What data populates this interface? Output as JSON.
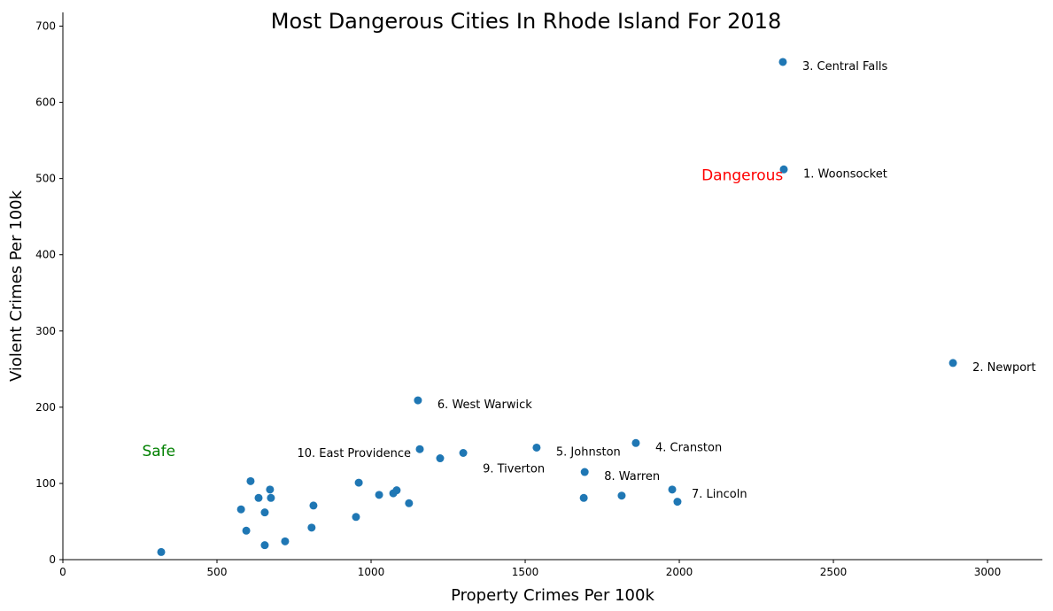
{
  "chart_data": {
    "type": "scatter",
    "title": "Most Dangerous Cities In Rhode Island For 2018",
    "xlabel": "Property Crimes Per 100k",
    "ylabel": "Violent Crimes Per 100k",
    "xlim": [
      0,
      3178
    ],
    "ylim": [
      0,
      718
    ],
    "xticks": [
      0,
      500,
      1000,
      1500,
      2000,
      2500,
      3000
    ],
    "yticks": [
      0,
      100,
      200,
      300,
      400,
      500,
      600,
      700
    ],
    "grid": false,
    "point_color": "#1f77b4",
    "points": [
      {
        "x": 2336,
        "y": 653,
        "label": "3. Central Falls"
      },
      {
        "x": 2339,
        "y": 512,
        "label": "1. Woonsocket"
      },
      {
        "x": 2888,
        "y": 258,
        "label": "2. Newport"
      },
      {
        "x": 1152,
        "y": 209,
        "label": "6. West Warwick"
      },
      {
        "x": 1859,
        "y": 153,
        "label": "4. Cranston"
      },
      {
        "x": 1537,
        "y": 147,
        "label": "5. Johnston"
      },
      {
        "x": 1158,
        "y": 145,
        "label": "10. East Providence"
      },
      {
        "x": 1299,
        "y": 140,
        "label": "9. Tiverton"
      },
      {
        "x": 1693,
        "y": 115,
        "label": "8. Warren"
      },
      {
        "x": 1977,
        "y": 92,
        "label": "7. Lincoln"
      },
      {
        "x": 1224,
        "y": 133
      },
      {
        "x": 1994,
        "y": 76
      },
      {
        "x": 1813,
        "y": 84
      },
      {
        "x": 1690,
        "y": 81
      },
      {
        "x": 609,
        "y": 103
      },
      {
        "x": 672,
        "y": 92
      },
      {
        "x": 960,
        "y": 101
      },
      {
        "x": 635,
        "y": 81
      },
      {
        "x": 675,
        "y": 81
      },
      {
        "x": 578,
        "y": 66
      },
      {
        "x": 655,
        "y": 62
      },
      {
        "x": 813,
        "y": 71
      },
      {
        "x": 1026,
        "y": 85
      },
      {
        "x": 1072,
        "y": 87
      },
      {
        "x": 1083,
        "y": 91
      },
      {
        "x": 1123,
        "y": 74
      },
      {
        "x": 951,
        "y": 56
      },
      {
        "x": 595,
        "y": 38
      },
      {
        "x": 807,
        "y": 42
      },
      {
        "x": 721,
        "y": 24
      },
      {
        "x": 655,
        "y": 19
      },
      {
        "x": 319,
        "y": 10
      }
    ],
    "annotations": [
      {
        "text": "Safe",
        "x": 257,
        "y": 143,
        "color": "#008000"
      },
      {
        "text": "Dangerous",
        "x": 2072,
        "y": 505,
        "color": "#ff0000"
      }
    ]
  }
}
